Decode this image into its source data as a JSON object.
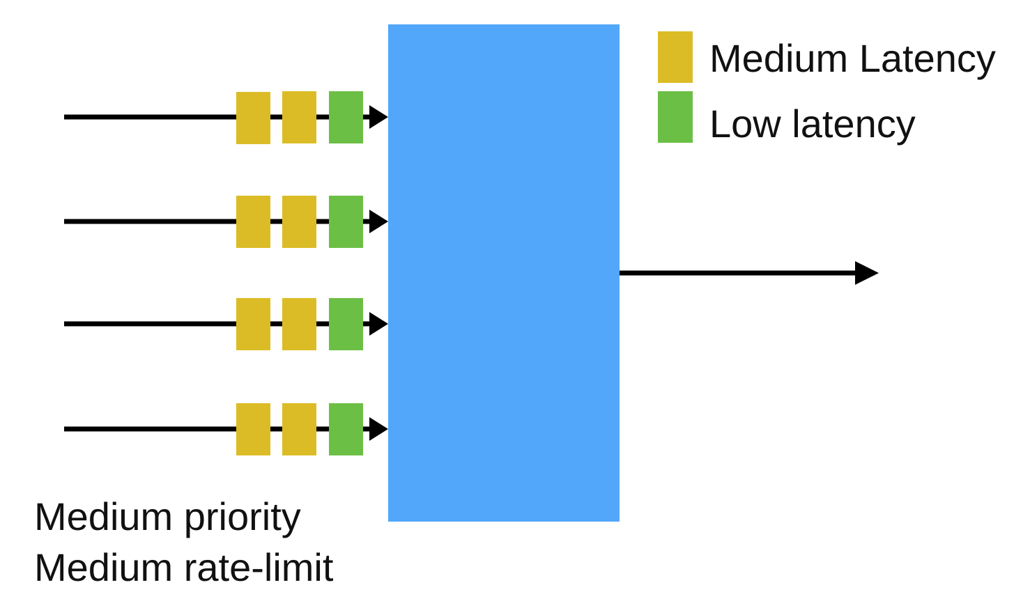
{
  "legend": {
    "items": [
      {
        "label": "Medium Latency",
        "color": "#DCBC26"
      },
      {
        "label": "Low latency",
        "color": "#6CBF45"
      }
    ]
  },
  "colors": {
    "scheduler": "#52A7FA",
    "line": "#000000",
    "medium": "#DCBC26",
    "low": "#6CBF45"
  },
  "queues": [
    {
      "packets": [
        "medium",
        "medium",
        "low"
      ]
    },
    {
      "packets": [
        "medium",
        "medium",
        "low"
      ]
    },
    {
      "packets": [
        "medium",
        "medium",
        "low"
      ]
    },
    {
      "packets": [
        "medium",
        "medium",
        "low"
      ]
    }
  ],
  "caption": {
    "line1": "Medium priority",
    "line2": "Medium rate-limit"
  }
}
